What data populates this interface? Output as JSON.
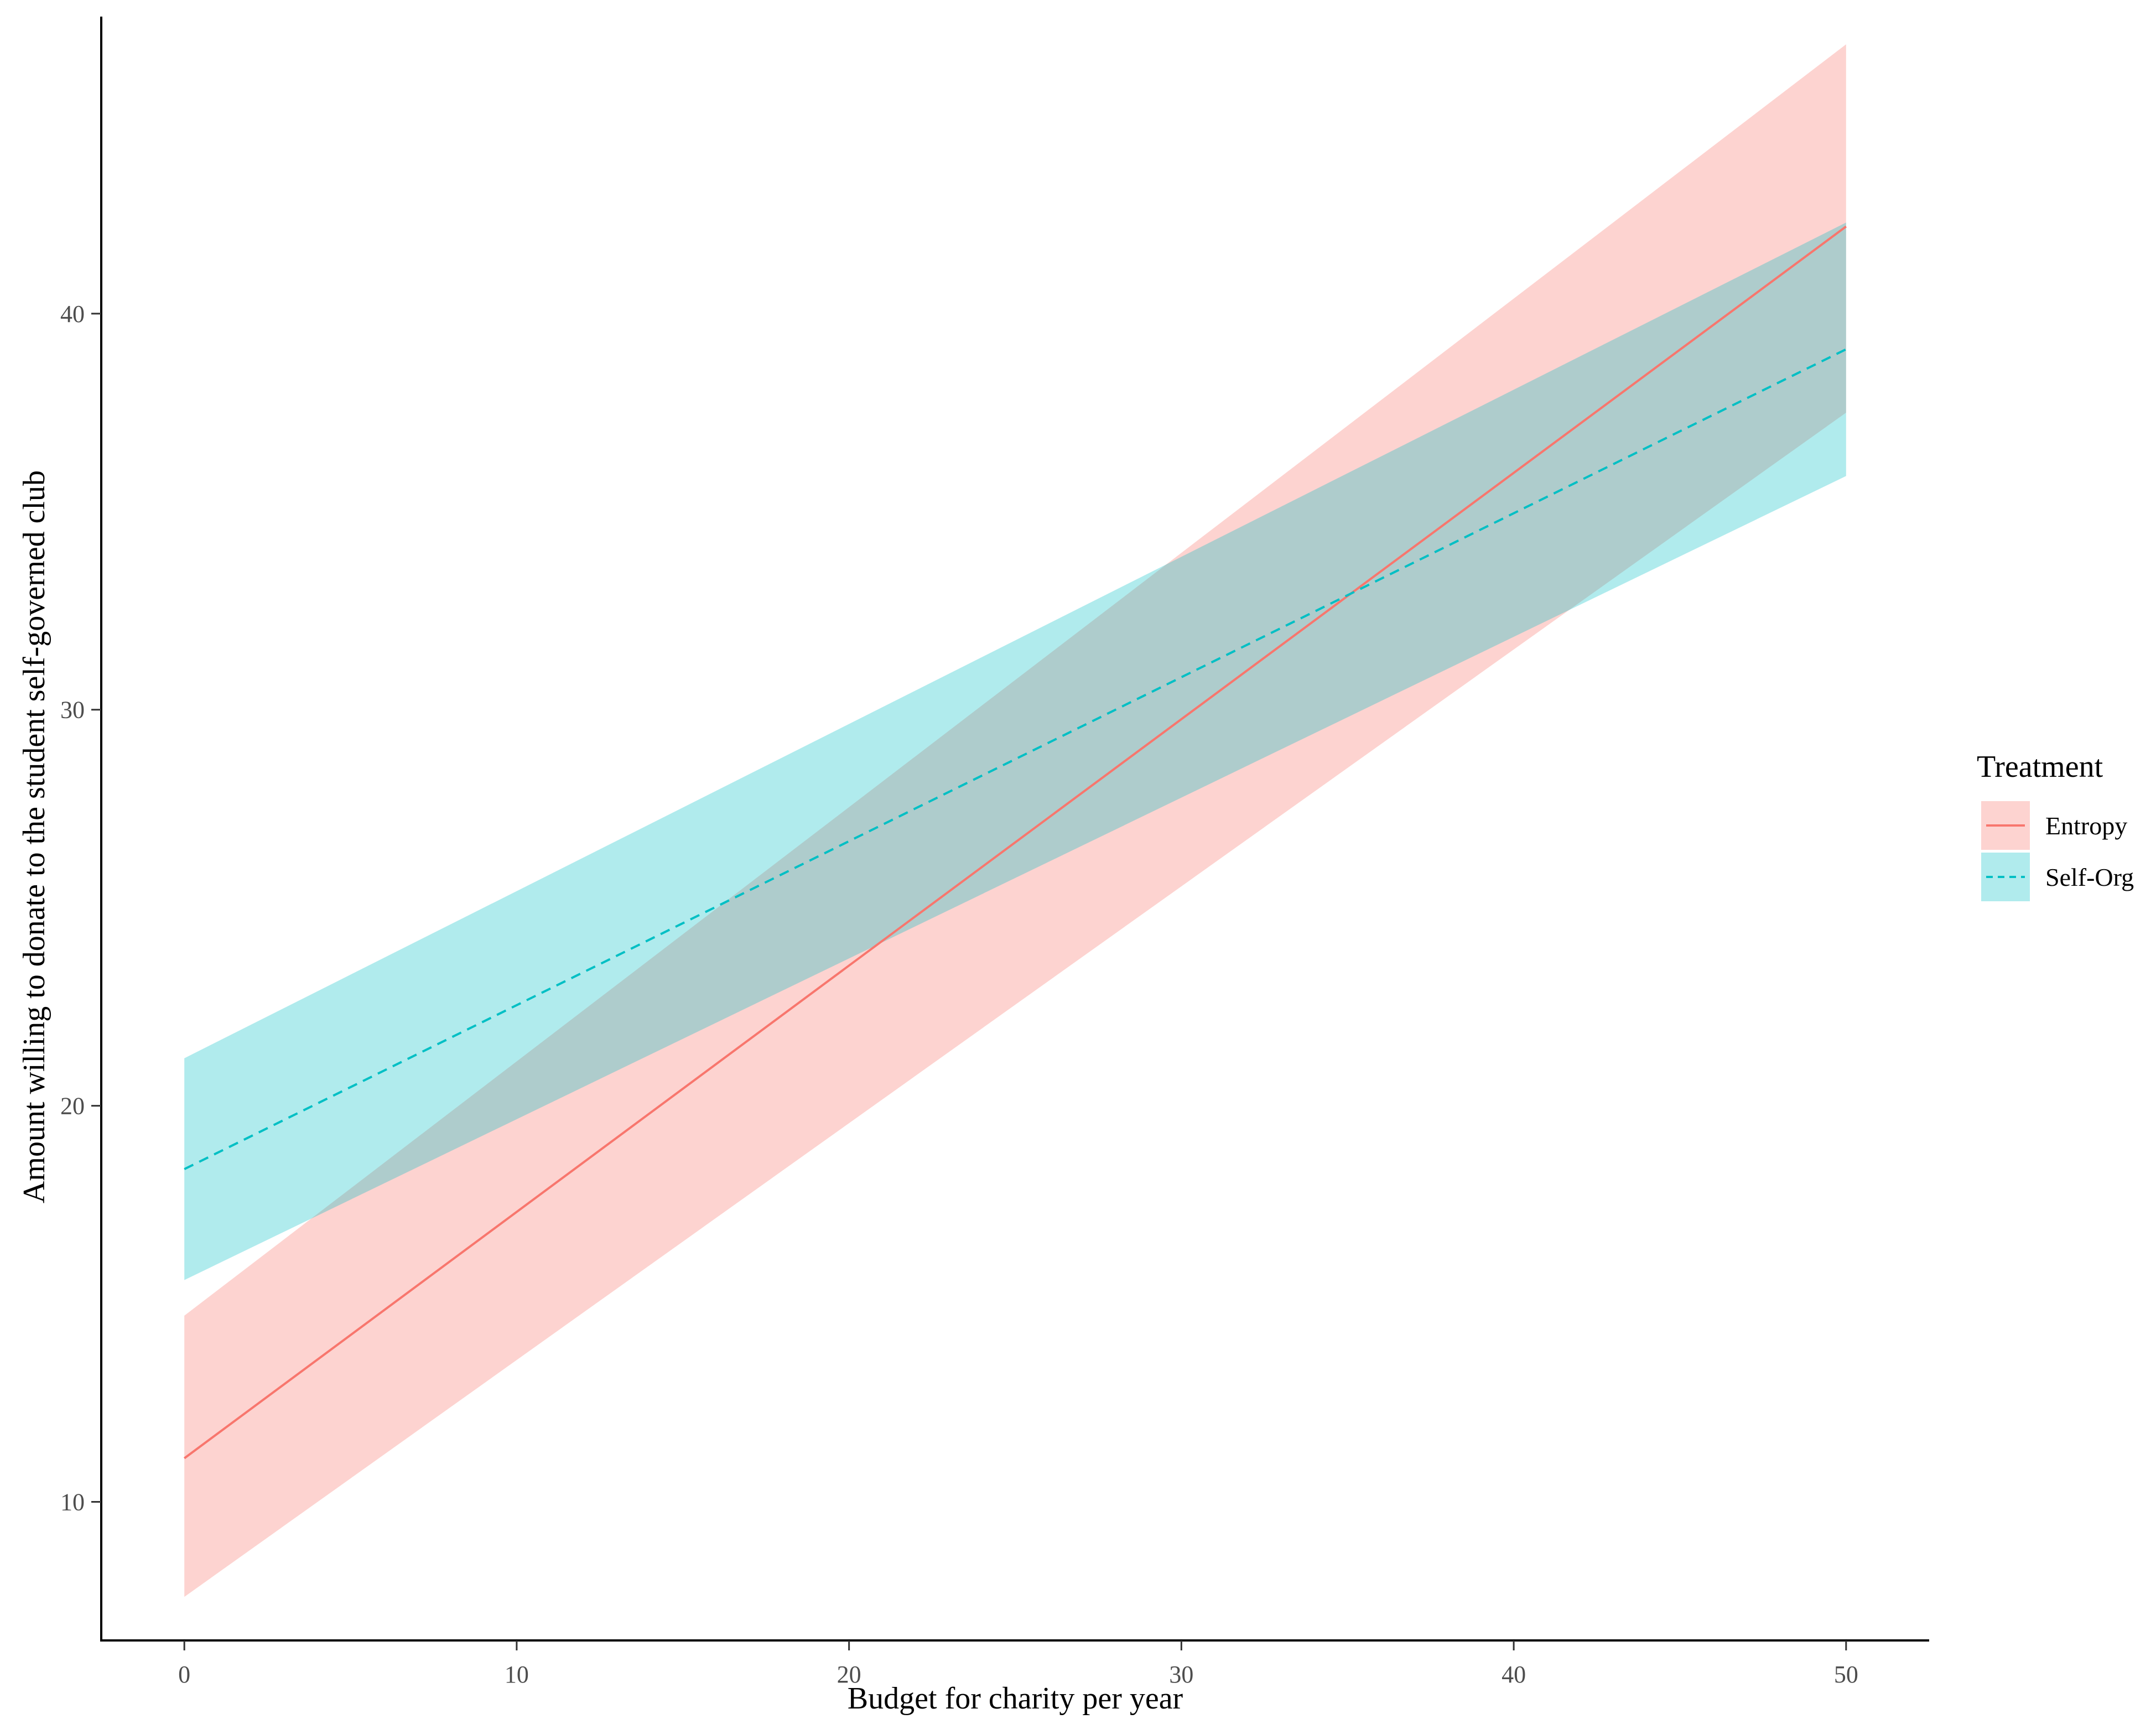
{
  "chart_data": {
    "type": "line",
    "title": "",
    "xlabel": "Budget for charity per year",
    "ylabel": "Amount willing to donate to the student self-governed club",
    "xlim": [
      -2.5,
      52.5
    ],
    "ylim": [
      6.5,
      47.5
    ],
    "x_ticks": [
      0,
      10,
      20,
      30,
      40,
      50
    ],
    "y_ticks": [
      10,
      20,
      30,
      40
    ],
    "grid": false,
    "legend": {
      "title": "Treatment",
      "position": "right"
    },
    "series": [
      {
        "name": "Entropy",
        "color": "#F8766D",
        "line_style": "solid",
        "x": [
          0,
          50
        ],
        "fit": [
          11.1,
          42.2
        ],
        "ci_lower": [
          7.6,
          37.5
        ],
        "ci_upper": [
          14.7,
          46.8
        ]
      },
      {
        "name": "Self-Org",
        "color": "#00BFC4",
        "line_style": "dashed",
        "x": [
          0,
          50
        ],
        "fit": [
          18.4,
          39.1
        ],
        "ci_lower": [
          15.6,
          35.9
        ],
        "ci_upper": [
          21.2,
          42.3
        ]
      }
    ]
  }
}
